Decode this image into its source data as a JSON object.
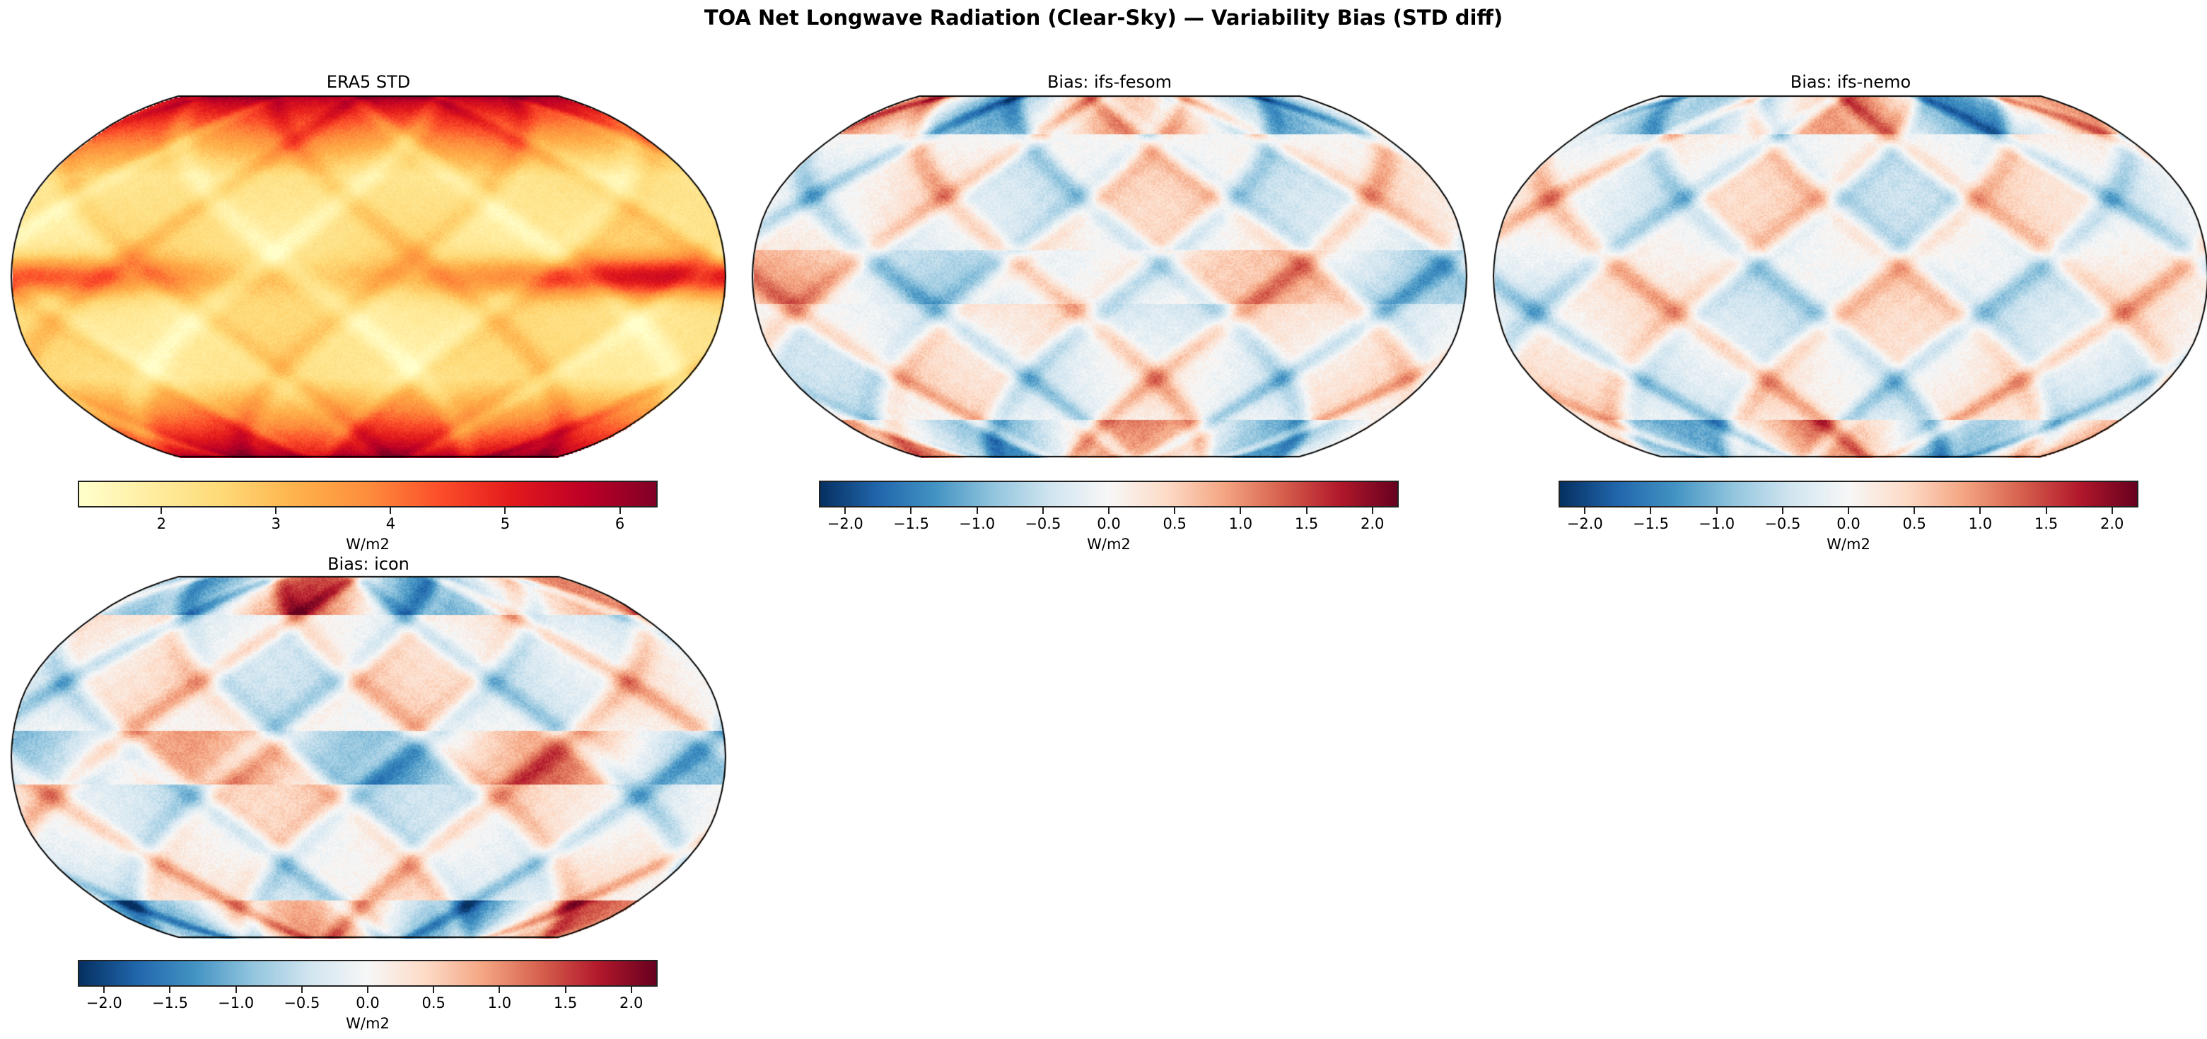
{
  "title": "TOA Net Longwave Radiation (Clear-Sky) — Variability Bias (STD diff)",
  "colors": {
    "YlOrRd": [
      "#ffffcc",
      "#ffeda0",
      "#fed976",
      "#feb24c",
      "#fd8d3c",
      "#fc4e2a",
      "#e31a1c",
      "#bd0026",
      "#800026"
    ],
    "RdBu_r": [
      "#053061",
      "#2166ac",
      "#4393c3",
      "#92c5de",
      "#d1e5f0",
      "#f7f7f7",
      "#fddbc7",
      "#f4a582",
      "#d6604d",
      "#b2182b",
      "#67001f"
    ]
  },
  "chart_data": [
    {
      "type": "heatmap",
      "title": "ERA5 STD",
      "projection": "Robinson",
      "cmap": "YlOrRd",
      "colorbar": {
        "label": "W/m2",
        "range": [
          1.27,
          6.33
        ],
        "ticks": [
          2,
          3,
          4,
          5,
          6
        ],
        "tick_labels": [
          "2",
          "3",
          "4",
          "5",
          "6"
        ]
      }
    },
    {
      "type": "heatmap",
      "title": "Bias: ifs-fesom",
      "projection": "Robinson",
      "cmap": "RdBu_r",
      "colorbar": {
        "label": "W/m2",
        "range": [
          -2.2,
          2.2
        ],
        "ticks": [
          -2,
          -1.5,
          -1,
          -0.5,
          0,
          0.5,
          1,
          1.5,
          2
        ],
        "tick_labels": [
          "−2.0",
          "−1.5",
          "−1.0",
          "−0.5",
          "0.0",
          "0.5",
          "1.0",
          "1.5",
          "2.0"
        ]
      }
    },
    {
      "type": "heatmap",
      "title": "Bias: ifs-nemo",
      "projection": "Robinson",
      "cmap": "RdBu_r",
      "colorbar": {
        "label": "W/m2",
        "range": [
          -2.2,
          2.2
        ],
        "ticks": [
          -2,
          -1.5,
          -1,
          -0.5,
          0,
          0.5,
          1,
          1.5,
          2
        ],
        "tick_labels": [
          "−2.0",
          "−1.5",
          "−1.0",
          "−0.5",
          "0.0",
          "0.5",
          "1.0",
          "1.5",
          "2.0"
        ]
      }
    },
    {
      "type": "heatmap",
      "title": "Bias: icon",
      "projection": "Robinson",
      "cmap": "RdBu_r",
      "colorbar": {
        "label": "W/m2",
        "range": [
          -2.2,
          2.2
        ],
        "ticks": [
          -2,
          -1.5,
          -1,
          -0.5,
          0,
          0.5,
          1,
          1.5,
          2
        ],
        "tick_labels": [
          "−2.0",
          "−1.5",
          "−1.0",
          "−0.5",
          "0.0",
          "0.5",
          "1.0",
          "1.5",
          "2.0"
        ]
      }
    }
  ]
}
